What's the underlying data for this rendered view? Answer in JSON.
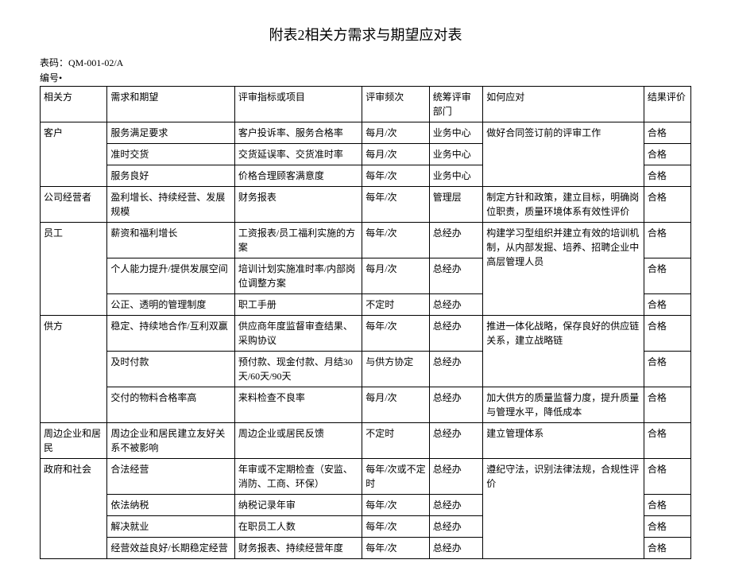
{
  "title": "附表2相关方需求与期望应对表",
  "meta_code_label": "表码：",
  "meta_code_value": "QM-001-02/A",
  "meta_serial_label": "编号•",
  "headers": {
    "party": "相关方",
    "demand": "需求和期望",
    "indicator": "评审指标或项目",
    "freq": "评审频次",
    "dept": "统筹评审部门",
    "respond": "如何应对",
    "result": "结果评价"
  },
  "g": [
    {
      "party": "客户",
      "rows": [
        {
          "demand": "服务满足要求",
          "indicator": "客户投诉率、服务合格率",
          "freq": "每月/次",
          "dept": "业务中心",
          "result": "合格"
        },
        {
          "demand": "准时交货",
          "indicator": "交货延误率、交货准时率",
          "freq": "每月/次",
          "dept": "业务中心",
          "result": "合格"
        },
        {
          "demand": "服务良好",
          "indicator": "价格合理顾客满意度",
          "freq": "每年/次",
          "dept": "业务中心",
          "result": "合格"
        }
      ],
      "respond": "做好合同签订前的评审工作"
    },
    {
      "party": "公司经营者",
      "rows": [
        {
          "demand": "盈利增长、持续经营、发展规模",
          "indicator": "财务报表",
          "freq": "每年/次",
          "dept": "管理层",
          "respond": "制定方针和政策，建立目标，明确岗位职责，质量环境体系有效性评价",
          "result": "合格"
        }
      ]
    },
    {
      "party": "员工",
      "rows": [
        {
          "demand": "薪资和福利增长",
          "indicator": "工资报表/员工福利实施的方案",
          "freq": "每年/次",
          "dept": "总经办",
          "result": "合格"
        },
        {
          "demand": "个人能力提升/提供发展空间",
          "indicator": "培训计划实施准时率/内部岗位调整方案",
          "freq": "每月/次",
          "dept": "总经办",
          "result": "合格"
        },
        {
          "demand": "公正、透明的管理制度",
          "indicator": "职工手册",
          "freq": "不定时",
          "dept": "总经办",
          "result": "合格"
        }
      ],
      "respond": "构建学习型组织并建立有效的培训机制，从内部发掘、培养、招聘企业中高层管理人员"
    },
    {
      "party": "供方",
      "rows": [
        {
          "demand": "稳定、持续地合作/互利双赢",
          "indicator": "供应商年度监督审查结果、采购协议",
          "freq": "每年/次",
          "dept": "总经办",
          "result": "合格"
        },
        {
          "demand": "及时付款",
          "indicator": "预付款、现金付款、月结30天/60天/90天",
          "freq": "与供方协定",
          "dept": "总经办",
          "result": "合格"
        },
        {
          "demand": "交付的物料合格率高",
          "indicator": "来料检查不良率",
          "freq": "每月/次",
          "dept": "总经办",
          "respond": "加大供方的质量监督力度，提升质量与管理水平，降低成本",
          "result": "合格"
        }
      ],
      "respond": "推进一体化战略，保存良好的供应链关系，建立战略链"
    },
    {
      "party": "周边企业和居民",
      "rows": [
        {
          "demand": "周边企业和居民建立友好关系不被影响",
          "indicator": "周边企业或居民反馈",
          "freq": "不定时",
          "dept": "总经办",
          "respond": "建立管理体系",
          "result": "合格"
        }
      ]
    },
    {
      "party": "政府和社会",
      "rows": [
        {
          "demand": "合法经营",
          "indicator": "年审或不定期检查（安监、消防、工商、环保）",
          "freq": "每年/次或不定时",
          "dept": "总经办",
          "result": "合格"
        },
        {
          "demand": "依法纳税",
          "indicator": "纳税记录年审",
          "freq": "每年/次",
          "dept": "总经办",
          "result": "合格"
        },
        {
          "demand": "解决就业",
          "indicator": "在职员工人数",
          "freq": "每年/次",
          "dept": "总经办",
          "result": "合格"
        },
        {
          "demand": "经营效益良好/长期稳定经营",
          "indicator": "财务报表、持续经营年度",
          "freq": "每年/次",
          "dept": "总经办",
          "result": "合格"
        }
      ],
      "respond": "遵纪守法，识别法律法规，合规性评价"
    }
  ]
}
